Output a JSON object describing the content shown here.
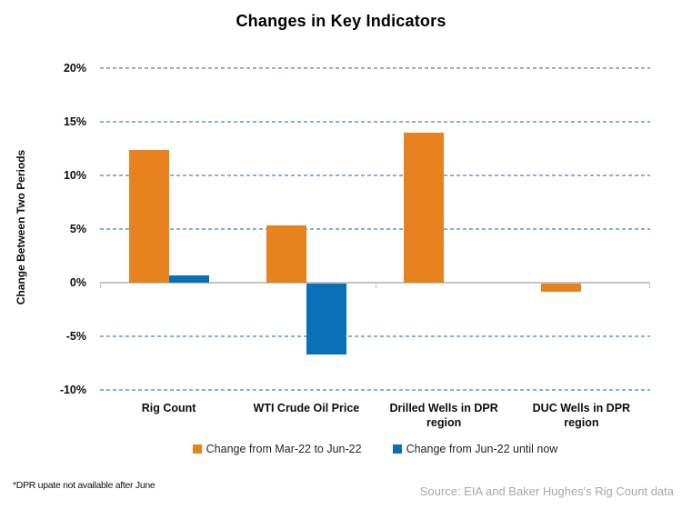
{
  "title": "Changes in Key Indicators",
  "y_axis": {
    "label": "Change Between Two Periods",
    "tick_labels": [
      "20%",
      "15%",
      "10%",
      "5%",
      "0%",
      "-5%",
      "-10%"
    ]
  },
  "footnote": "*DPR upate not available after June",
  "source": "Source: EIA and Baker Hughes's Rig Count data",
  "colors": {
    "series_orange": "#E8821E",
    "series_blue": "#0A70B8",
    "gridline": "#7FB2DC",
    "axis": "#C4C4C4",
    "source_text": "#A9A9A9"
  },
  "chart_data": {
    "type": "bar",
    "categories": [
      "Rig Count",
      "WTI Crude Oil Price",
      "Drilled Wells in DPR region",
      "DUC Wells in DPR region"
    ],
    "series": [
      {
        "name": "Change from Mar-22 to Jun-22",
        "color": "#E8821E",
        "values": [
          12.4,
          5.3,
          14.0,
          -0.8
        ]
      },
      {
        "name": "Change from Jun-22 until now",
        "color": "#0A70B8",
        "values": [
          0.7,
          -6.6,
          null,
          null
        ]
      }
    ],
    "title": "Changes in Key Indicators",
    "xlabel": "",
    "ylabel": "Change Between Two Periods",
    "ylim": [
      -10,
      20
    ],
    "yticks": [
      20,
      15,
      10,
      5,
      0,
      -5,
      -10
    ],
    "ytick_step": 5,
    "grid": "dashed-horizontal",
    "legend_position": "bottom"
  }
}
